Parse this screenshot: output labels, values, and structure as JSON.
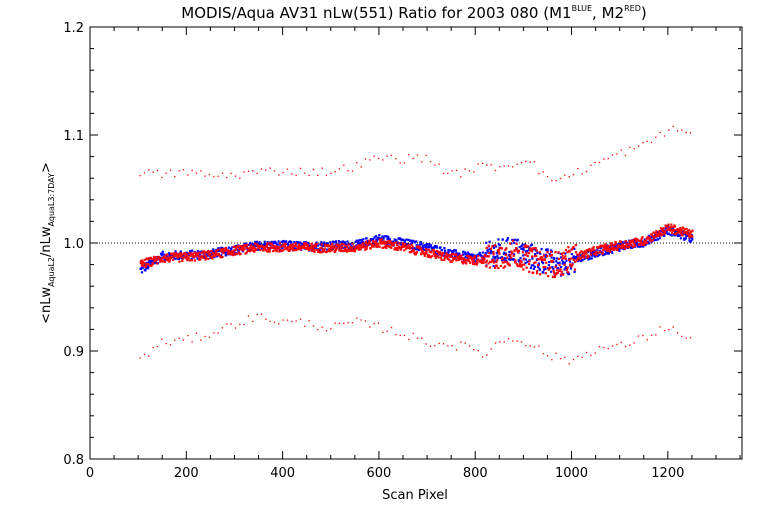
{
  "chart_data": {
    "type": "scatter",
    "title": {
      "main": "MODIS/Aqua AV31 nLw(551) Ratio for 2003 080 (M1",
      "sup1": "BLUE",
      "mid": ", M2",
      "sup2": "RED",
      "end": ")"
    },
    "xlabel": "Scan Pixel",
    "ylabel": {
      "part1": "<nLw",
      "sub1": "AquaL2",
      "part2": "/nLw",
      "sub2": "AquaL3:7DAY",
      "part3": ">"
    },
    "xlim": [
      0,
      1354
    ],
    "ylim": [
      0.8,
      1.2
    ],
    "x_ticks": [
      0,
      200,
      400,
      600,
      800,
      1000,
      1200
    ],
    "y_ticks": [
      0.8,
      0.9,
      1.0,
      1.1,
      1.2
    ],
    "x_tick_labels": [
      "0",
      "200",
      "400",
      "600",
      "800",
      "1000",
      "1200"
    ],
    "y_tick_labels": [
      "0.8",
      "0.9",
      "1.0",
      "1.1",
      "1.2"
    ],
    "reference_line": {
      "y": 1.0,
      "style": "dotted"
    },
    "colors": {
      "M1": "#0000ff",
      "M2": "#ff0000",
      "axes": "#000000",
      "background": "#ffffff"
    },
    "series": [
      {
        "color_key": "M1",
        "role": "mean",
        "x": [
          104,
          150,
          200,
          250,
          300,
          350,
          400,
          450,
          500,
          550,
          600,
          650,
          700,
          750,
          800,
          850,
          880,
          910,
          940,
          970,
          1000,
          1050,
          1100,
          1150,
          1200,
          1250
        ],
        "values": [
          0.975,
          0.988,
          0.989,
          0.99,
          0.994,
          0.998,
          0.998,
          0.997,
          0.998,
          0.998,
          1.004,
          1.0,
          0.996,
          0.99,
          0.986,
          0.992,
          0.994,
          0.988,
          0.984,
          0.98,
          0.984,
          0.991,
          0.997,
          1.001,
          1.012,
          1.004
        ]
      },
      {
        "color_key": "M2",
        "role": "mean",
        "x": [
          104,
          150,
          200,
          250,
          300,
          350,
          400,
          450,
          500,
          550,
          600,
          650,
          700,
          750,
          800,
          850,
          880,
          910,
          940,
          970,
          1000,
          1050,
          1100,
          1150,
          1200,
          1250
        ],
        "values": [
          0.98,
          0.986,
          0.987,
          0.989,
          0.993,
          0.996,
          0.996,
          0.996,
          0.995,
          0.996,
          1.0,
          0.996,
          0.991,
          0.986,
          0.984,
          0.988,
          0.991,
          0.985,
          0.982,
          0.98,
          0.986,
          0.993,
          0.998,
          1.002,
          1.014,
          1.008
        ]
      },
      {
        "color_key": "M2",
        "role": "upper-bound",
        "x": [
          104,
          150,
          200,
          250,
          300,
          350,
          400,
          450,
          500,
          550,
          600,
          650,
          700,
          750,
          780,
          800,
          850,
          880,
          910,
          950,
          1000,
          1050,
          1100,
          1150,
          1200,
          1250
        ],
        "values": [
          1.066,
          1.063,
          1.066,
          1.062,
          1.063,
          1.066,
          1.067,
          1.066,
          1.066,
          1.071,
          1.079,
          1.078,
          1.079,
          1.063,
          1.066,
          1.07,
          1.071,
          1.073,
          1.08,
          1.058,
          1.063,
          1.073,
          1.083,
          1.09,
          1.105,
          1.103
        ]
      },
      {
        "color_key": "M2",
        "role": "lower-bound",
        "x": [
          104,
          150,
          200,
          250,
          300,
          350,
          400,
          450,
          500,
          550,
          600,
          650,
          700,
          750,
          800,
          820,
          850,
          880,
          910,
          950,
          1000,
          1050,
          1100,
          1150,
          1200,
          1250
        ],
        "values": [
          0.892,
          0.908,
          0.91,
          0.916,
          0.925,
          0.932,
          0.927,
          0.926,
          0.921,
          0.927,
          0.922,
          0.916,
          0.908,
          0.906,
          0.902,
          0.896,
          0.909,
          0.912,
          0.908,
          0.896,
          0.891,
          0.902,
          0.904,
          0.912,
          0.923,
          0.908
        ]
      }
    ]
  }
}
